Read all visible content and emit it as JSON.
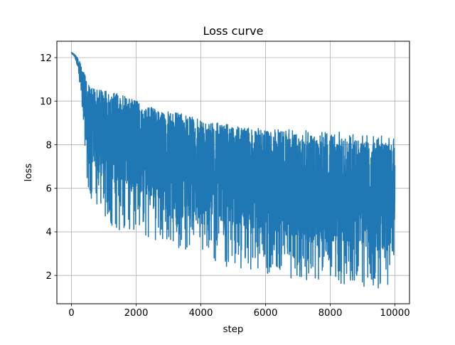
{
  "chart_data": {
    "type": "line",
    "title": "Loss curve",
    "xlabel": "step",
    "ylabel": "loss",
    "xlim": [
      -450,
      10450
    ],
    "ylim": [
      0.7,
      12.75
    ],
    "x_ticks": [
      0,
      2000,
      4000,
      6000,
      8000,
      10000
    ],
    "x_tick_labels": [
      "0",
      "2000",
      "4000",
      "6000",
      "8000",
      "10000"
    ],
    "y_ticks": [
      2,
      4,
      6,
      8,
      10,
      12
    ],
    "y_tick_labels": [
      "2",
      "4",
      "6",
      "8",
      "10",
      "12"
    ],
    "grid": true,
    "series": [
      {
        "color": "#1f77b4",
        "x": [
          0,
          100,
          200,
          300,
          400,
          500,
          600,
          800,
          1000,
          1500,
          2000,
          2500,
          3000,
          3500,
          4000,
          4500,
          5000,
          5500,
          6000,
          6500,
          7000,
          7500,
          8000,
          8500,
          9000,
          9500,
          10000
        ],
        "y_max": [
          12.25,
          12.15,
          12.0,
          11.7,
          11.3,
          10.8,
          10.6,
          10.5,
          10.5,
          10.3,
          10.0,
          9.7,
          9.5,
          9.4,
          9.2,
          9.0,
          8.9,
          8.8,
          8.8,
          8.7,
          8.7,
          8.6,
          8.6,
          8.6,
          8.5,
          8.5,
          8.3
        ],
        "y_min": [
          12.2,
          12.0,
          11.5,
          10.2,
          8.0,
          5.9,
          5.5,
          5.0,
          4.5,
          4.0,
          4.0,
          3.7,
          3.4,
          3.2,
          3.0,
          2.5,
          2.3,
          2.2,
          2.1,
          2.0,
          1.8,
          1.8,
          1.7,
          1.6,
          1.5,
          1.4,
          1.2
        ],
        "y_center": [
          12.22,
          12.1,
          11.8,
          11.0,
          10.0,
          9.3,
          9.0,
          8.7,
          8.5,
          8.3,
          8.0,
          7.7,
          7.5,
          7.2,
          7.0,
          6.8,
          6.6,
          6.4,
          6.3,
          6.2,
          6.1,
          6.0,
          5.9,
          5.8,
          5.7,
          5.6,
          5.5
        ]
      }
    ]
  }
}
